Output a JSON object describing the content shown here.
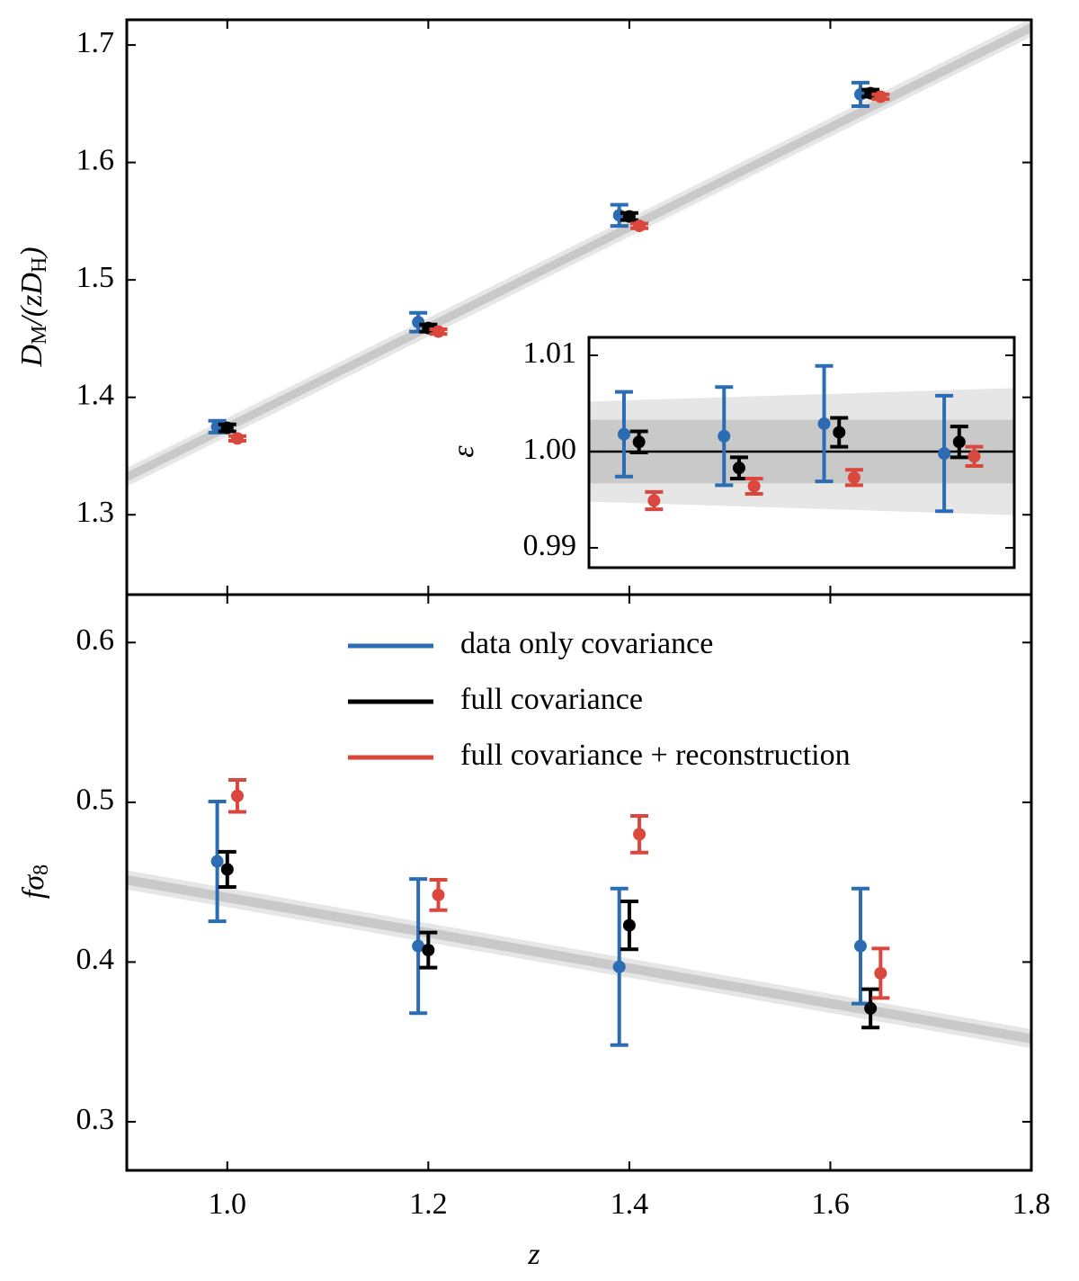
{
  "chart_data": [
    {
      "type": "errorbar",
      "ylabel": [
        {
          "text": "D"
        },
        {
          "text": "M",
          "sub": true
        },
        {
          "text": "/("
        },
        {
          "text": "zD"
        },
        {
          "text": "H",
          "sub": true
        },
        {
          "text": ")"
        }
      ],
      "xlim": [
        0.9,
        1.8
      ],
      "ylim": [
        1.232,
        1.7215
      ],
      "xticks": [
        {
          "value": 1.0,
          "label": "1.0"
        },
        1.2,
        1.4,
        1.6,
        1.8
      ],
      "yticks": [
        1.3,
        1.4,
        1.5,
        1.6,
        1.7
      ],
      "band": {
        "x": [
          0.9,
          1.8
        ],
        "center": [
          1.332,
          1.715
        ],
        "inner": [
          0.004,
          0.004
        ],
        "outer": [
          0.008,
          0.008
        ],
        "inner_color": "#c9c9c9",
        "outer_color": "#e6e6e6"
      },
      "series": [
        {
          "color": "#2b6cb3",
          "x": [
            0.99,
            1.19,
            1.39,
            1.63
          ],
          "values": [
            1.375,
            1.464,
            1.555,
            1.658
          ],
          "errors": [
            0.005,
            0.008,
            0.009,
            0.01
          ]
        },
        {
          "color": "#000000",
          "x": [
            1.0,
            1.2,
            1.4,
            1.64
          ],
          "values": [
            1.374,
            1.459,
            1.554,
            1.659
          ],
          "errors": [
            0.003,
            0.003,
            0.003,
            0.003
          ]
        },
        {
          "color": "#d9473d",
          "x": [
            1.01,
            1.21,
            1.41,
            1.65
          ],
          "values": [
            1.365,
            1.456,
            1.546,
            1.656
          ],
          "errors": [
            0.002,
            0.002,
            0.002,
            0.002
          ]
        }
      ]
    },
    {
      "type": "errorbar",
      "ylabel": [
        {
          "text": "ε"
        }
      ],
      "xlim": [
        0.9,
        1.75
      ],
      "ylim": [
        0.98794,
        1.01187
      ],
      "yticks": [
        0.99,
        {
          "value": 1.0,
          "label": "1.00"
        },
        1.01
      ],
      "band": {
        "x": [
          0.9,
          1.75
        ],
        "center": [
          1.0,
          1.0
        ],
        "inner": [
          0.0033,
          0.0033
        ],
        "outer": [
          0.0052,
          0.0066
        ],
        "inner_color": "#c9c9c9",
        "outer_color": "#e6e6e6"
      },
      "series": [
        {
          "color": "#2b6cb3",
          "x": [
            0.97,
            1.17,
            1.37,
            1.61
          ],
          "values": [
            1.0018,
            1.0016,
            1.0029,
            0.9998
          ],
          "errors": [
            0.0044,
            0.0051,
            0.006,
            0.006
          ]
        },
        {
          "color": "#000000",
          "x": [
            1.0,
            1.2,
            1.4,
            1.64
          ],
          "values": [
            1.001,
            0.9983,
            1.002,
            1.001
          ],
          "errors": [
            0.0011,
            0.0011,
            0.0015,
            0.0016
          ]
        },
        {
          "color": "#d9473d",
          "x": [
            1.03,
            1.23,
            1.43,
            1.67
          ],
          "values": [
            0.9949,
            0.9964,
            0.9973,
            0.9995
          ],
          "errors": [
            0.0009,
            0.0008,
            0.0008,
            0.001
          ]
        }
      ]
    },
    {
      "type": "errorbar",
      "xlabel": "z",
      "ylabel": [
        {
          "text": "fσ"
        },
        {
          "text": "8",
          "sub": true
        }
      ],
      "xlim": [
        0.9,
        1.8
      ],
      "ylim": [
        0.2696,
        0.63
      ],
      "xticks": [
        {
          "value": 1.0,
          "label": "1.0"
        },
        1.2,
        1.4,
        1.6,
        1.8
      ],
      "yticks": [
        0.3,
        0.4,
        0.5,
        0.6
      ],
      "legend": "upper right",
      "band": {
        "x": [
          0.9,
          1.8
        ],
        "center": [
          0.4514,
          0.352
        ],
        "inner": [
          0.003,
          0.003
        ],
        "outer": [
          0.006,
          0.006
        ],
        "inner_color": "#c9c9c9",
        "outer_color": "#e6e6e6"
      },
      "series": [
        {
          "name": "data only covariance",
          "color": "#2b6cb3",
          "x": [
            0.99,
            1.19,
            1.39,
            1.63
          ],
          "values": [
            0.463,
            0.41,
            0.397,
            0.41
          ],
          "errors": [
            0.0375,
            0.042,
            0.049,
            0.036
          ]
        },
        {
          "name": "full covariance",
          "color": "#000000",
          "x": [
            1.0,
            1.2,
            1.4,
            1.64
          ],
          "values": [
            0.458,
            0.4075,
            0.423,
            0.371
          ],
          "errors": [
            0.011,
            0.011,
            0.015,
            0.012
          ]
        },
        {
          "name": "full covariance + reconstruction",
          "color": "#d9473d",
          "x": [
            1.01,
            1.21,
            1.41,
            1.65
          ],
          "values": [
            0.504,
            0.442,
            0.48,
            0.393
          ],
          "errors": [
            0.01,
            0.0095,
            0.0115,
            0.0155
          ]
        }
      ]
    }
  ]
}
